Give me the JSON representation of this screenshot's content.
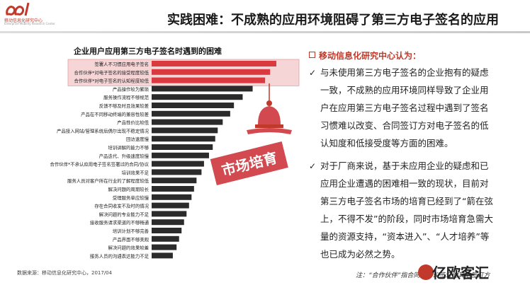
{
  "logo": {
    "name": "移动信息化研究中心",
    "sub": "Enterprise Mobility Research Center"
  },
  "title": "实践困难：不成熟的应用环境阻碍了第三方电子签名的应用",
  "chart_data": {
    "type": "bar",
    "title": "企业用户应用第三方电子签名时遇到的困难",
    "orientation": "horizontal",
    "categories": [
      "签署人不习惯应用电子签名",
      "合作伙伴*对电子签名的接受程度较低",
      "合作伙伴*对电子签名的认知程度较低",
      "产品操作较为繁琐",
      "服务操作流程不够规范",
      "反馈不够及时且效果较差",
      "产品在不同移动终端的兼容性较差",
      "产品性价比较低",
      "产品接入网站/管理系统后偶尔出现不稳定情况",
      "回访速度慢",
      "培训讲解的能力不够",
      "产品迭代、升级速度较慢",
      "合作伙伴*不承认应用电子签名签署过的合同/协议",
      "培训效果不足",
      "服务人员对客户所在行业的了解程度较低",
      "解决问题的周期较长",
      "受理服务单应较慢",
      "存在合同收发不及时的情况",
      "解决问题的专业能力不足",
      "接收服务请求渠道的不够畅通",
      "培训计划不够完善",
      "产品界面不够美观",
      "解决问题的效果较差",
      "服务人员的沟通表达能力不足"
    ],
    "values": [
      100,
      95,
      91,
      81,
      73,
      66,
      63,
      57,
      53,
      51,
      49,
      46,
      42,
      40,
      36,
      34,
      32,
      30,
      28,
      26,
      24,
      22,
      20,
      17
    ],
    "highlighted": [
      0,
      1,
      2
    ],
    "bar_color": "#2b2b2b",
    "highlight_color": "#d93a3f",
    "source": "数据来源：移动信息化研究中心，2017/04"
  },
  "stamp_label": "市场培育",
  "colors": {
    "accent": "#c0392b",
    "stamp": "#d24a4f"
  },
  "right": {
    "heading": "移动信息化研究中心认为：",
    "para1": "与未使用第三方电子签名的企业抱有的疑虑一致，不成熟的应用环境同样导致了企业用户在应用第三方电子签名过程中遇到了签名习惯难以改变、合同签订方对电子签名的低认知度和低接受度等方面的困难。",
    "para2": "对于厂商来说，基于未应用企业的疑虑和已应用企业遭遇的困难相一致的现状，目前对第三方电子签名市场的培育已经到了“箭在弦上，不得不发”的阶段，同时市场培育急需大量的资源支持，“资本进入”、“人才培养”等也已成为必然之势。",
    "check_glyph": "✓"
  },
  "note": "注：“合作伙伴”指合同、协议签订的其他签订方",
  "brand": "亿欧客汇"
}
